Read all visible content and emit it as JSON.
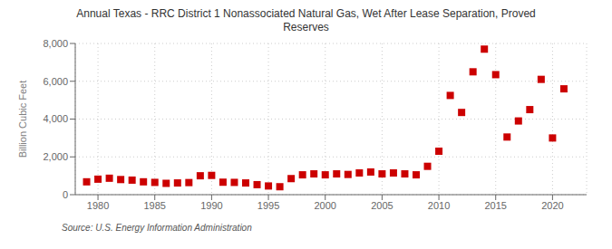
{
  "chart_data": {
    "type": "scatter",
    "title": "Annual Texas - RRC District 1 Nonassociated Natural Gas, Wet After Lease Separation, Proved\nReserves",
    "ylabel": "Billion Cubic Feet",
    "annotations": [
      "Source: U.S. Energy Information Administration"
    ],
    "color": "#cc0000",
    "marker": "square",
    "grid": true,
    "x": [
      1979,
      1980,
      1981,
      1982,
      1983,
      1984,
      1985,
      1986,
      1987,
      1988,
      1989,
      1990,
      1991,
      1992,
      1993,
      1994,
      1995,
      1996,
      1997,
      1998,
      1999,
      2000,
      2001,
      2002,
      2003,
      2004,
      2005,
      2006,
      2007,
      2008,
      2009,
      2010,
      2011,
      2012,
      2013,
      2014,
      2015,
      2016,
      2017,
      2018,
      2019,
      2020,
      2021
    ],
    "values": [
      680,
      820,
      870,
      800,
      770,
      680,
      650,
      600,
      620,
      640,
      1000,
      1020,
      660,
      650,
      620,
      530,
      460,
      420,
      850,
      1050,
      1100,
      1050,
      1100,
      1070,
      1150,
      1200,
      1100,
      1150,
      1100,
      1050,
      1500,
      2300,
      5250,
      4350,
      6500,
      7700,
      6350,
      3050,
      3900,
      4500,
      6100,
      3000,
      5600
    ],
    "xlim": [
      1978,
      2023
    ],
    "ylim": [
      0,
      8000
    ],
    "xticks": [
      1980,
      1985,
      1990,
      1995,
      2000,
      2005,
      2010,
      2015,
      2020
    ],
    "yticks": [
      0,
      {
        "value": 2000,
        "label": "2,000"
      },
      {
        "value": 4000,
        "label": "4,000"
      },
      {
        "value": 6000,
        "label": "6,000"
      },
      {
        "value": 8000,
        "label": "8,000"
      }
    ]
  }
}
